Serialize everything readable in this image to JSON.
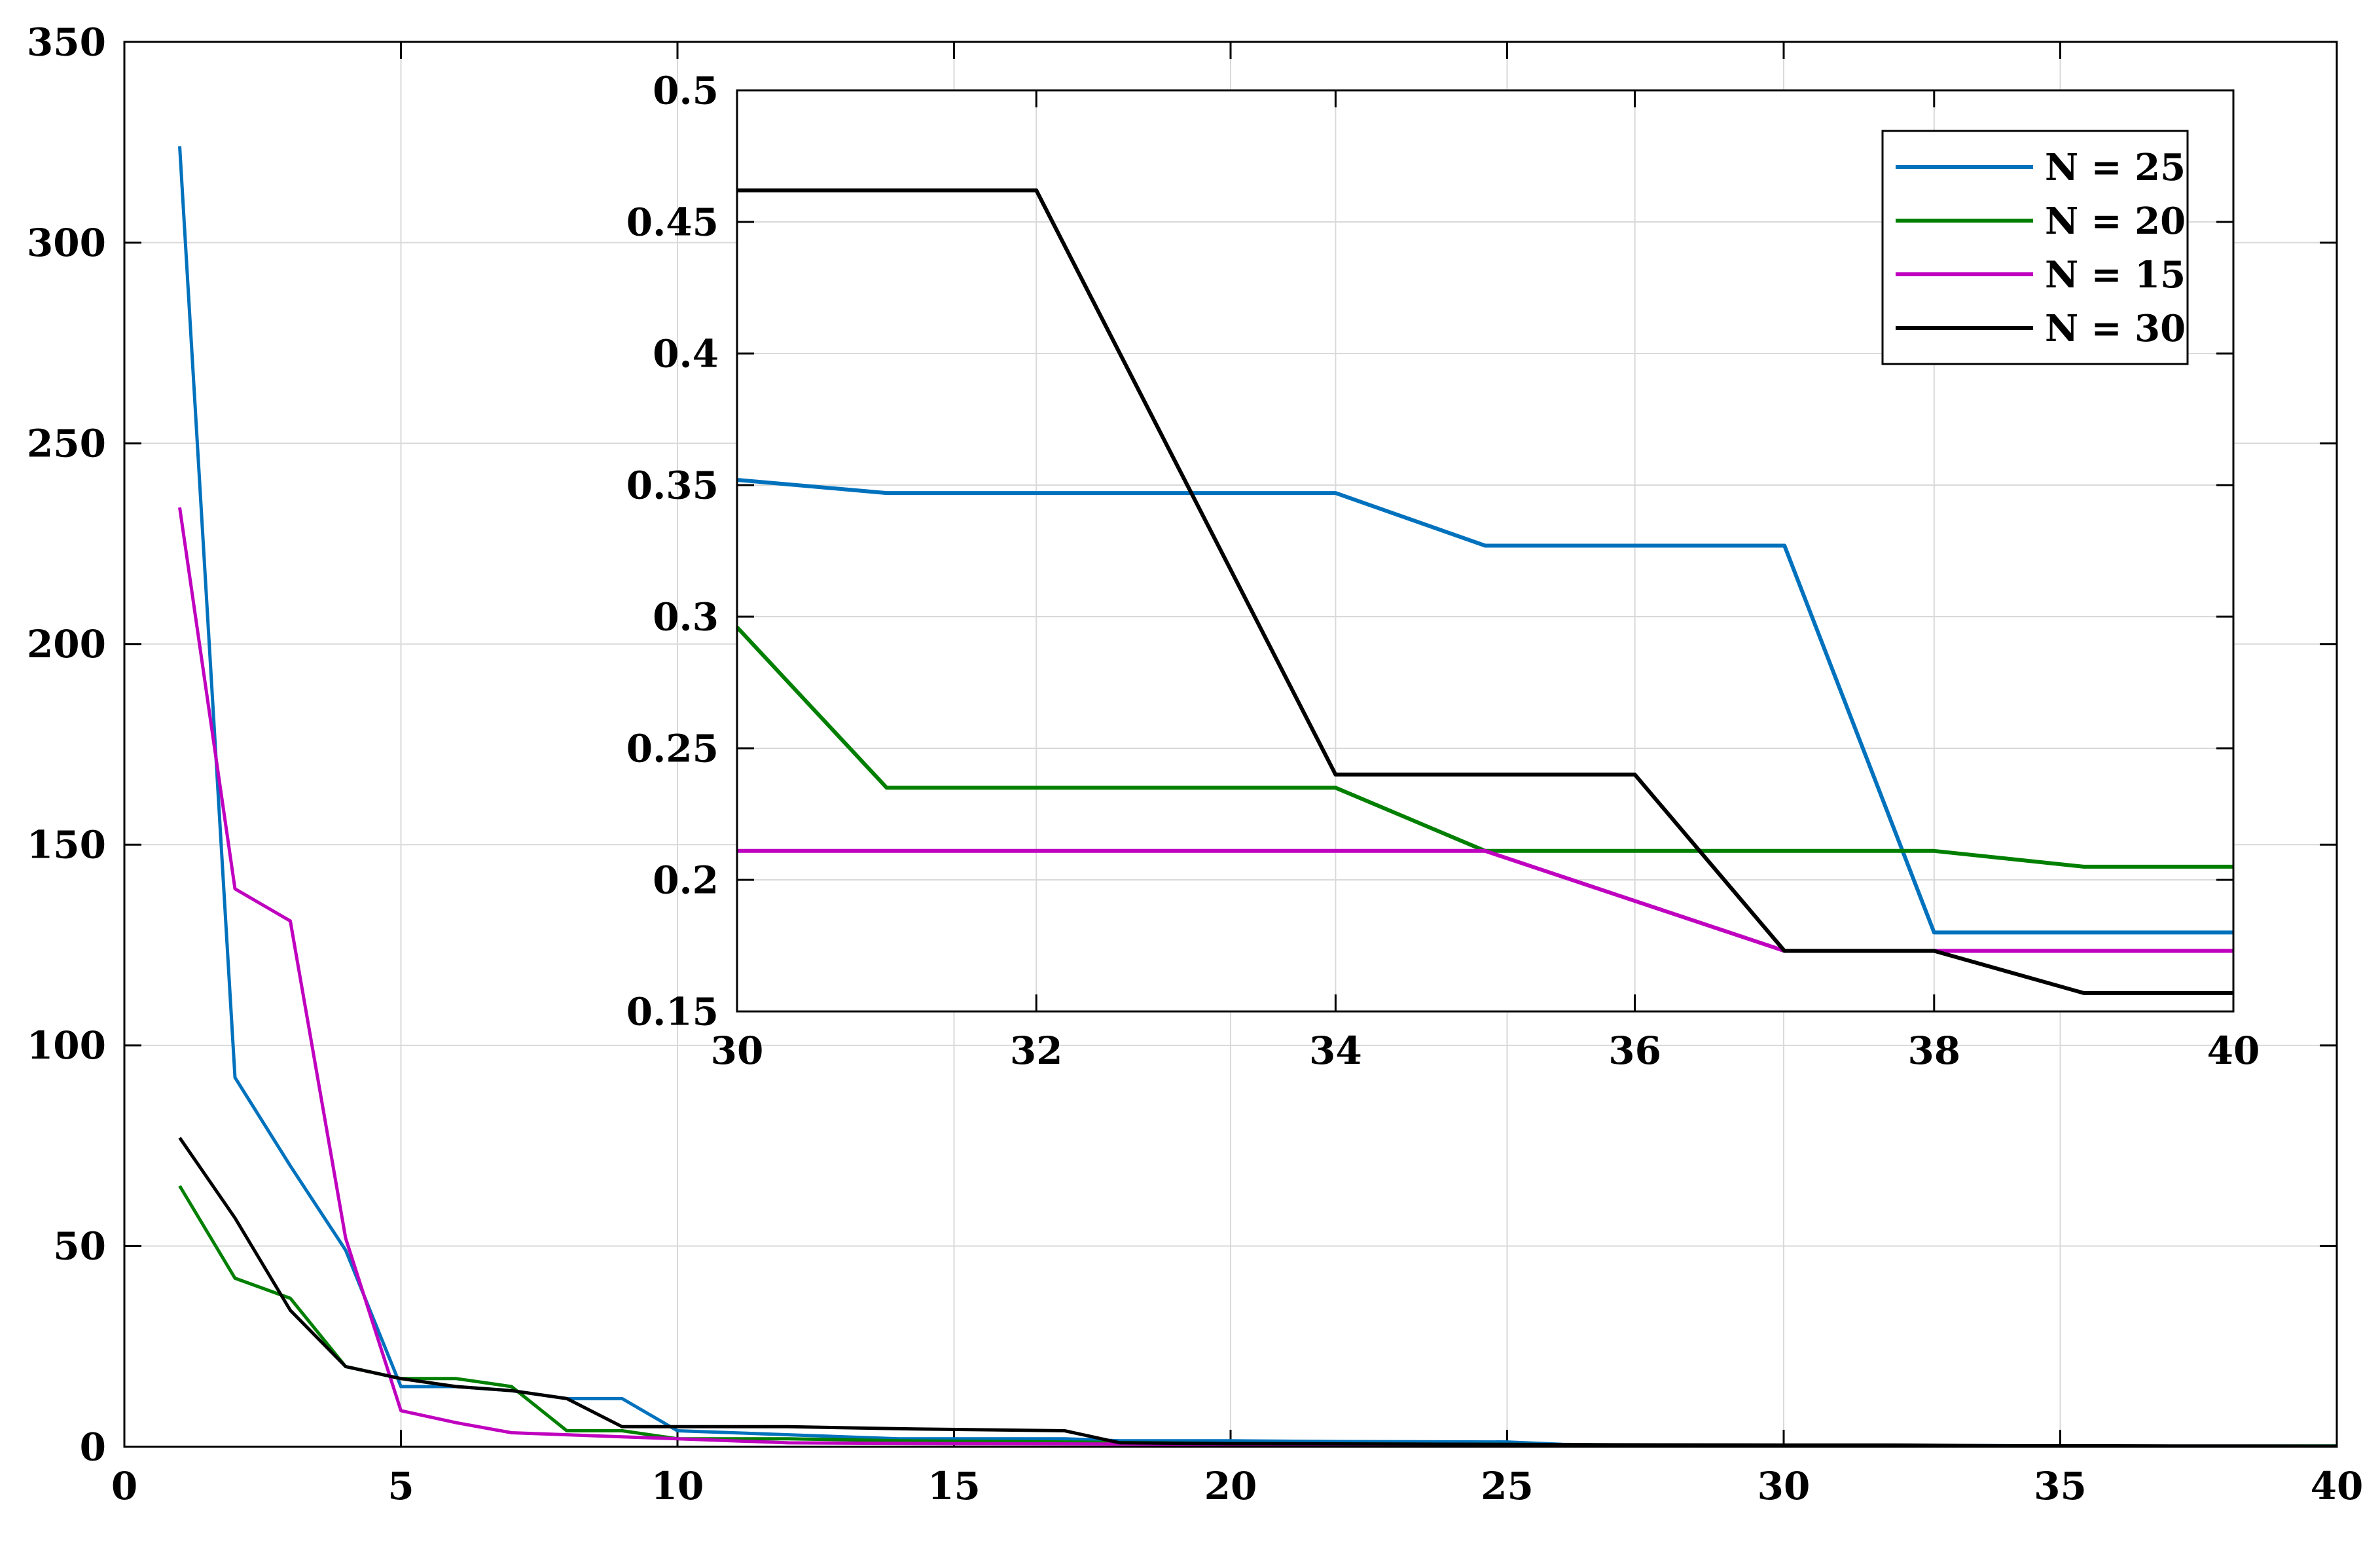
{
  "chart_data": [
    {
      "type": "line",
      "title": "",
      "xlabel": "",
      "ylabel": "",
      "xlim": [
        0,
        40
      ],
      "ylim": [
        0,
        350
      ],
      "xticks": [
        "0",
        "5",
        "10",
        "15",
        "20",
        "25",
        "30",
        "35",
        "40"
      ],
      "yticks": [
        "0",
        "50",
        "100",
        "150",
        "200",
        "250",
        "300",
        "350"
      ],
      "grid": true,
      "series": [
        {
          "name": "N = 25",
          "color": "#0072BD",
          "x": [
            1,
            2,
            3,
            4,
            5,
            6,
            7,
            8,
            9,
            10,
            12,
            14,
            17,
            18,
            20,
            22,
            25,
            26,
            27,
            30,
            33,
            36,
            40
          ],
          "y": [
            324,
            92,
            70,
            49,
            15,
            15,
            14,
            12,
            12,
            4,
            3,
            2,
            2,
            1.5,
            1.5,
            1.3,
            1.2,
            0.6,
            0.4,
            0.35,
            0.33,
            0.18,
            0.18
          ]
        },
        {
          "name": "N = 20",
          "color": "#007F00",
          "x": [
            1,
            2,
            3,
            4,
            5,
            6,
            7,
            8,
            9,
            10,
            12,
            14,
            17,
            20,
            25,
            30,
            35,
            40
          ],
          "y": [
            65,
            42,
            37,
            20,
            17,
            17,
            15,
            4,
            4,
            2,
            2,
            1.5,
            1.2,
            0.8,
            0.6,
            0.3,
            0.21,
            0.2
          ]
        },
        {
          "name": "N = 15",
          "color": "#BF00BF",
          "x": [
            1,
            2,
            3,
            4,
            5,
            6,
            7,
            8,
            9,
            10,
            12,
            15,
            20,
            25,
            30,
            35,
            40
          ],
          "y": [
            234,
            139,
            131,
            52,
            9,
            6,
            3.5,
            3,
            2.5,
            2,
            1,
            0.8,
            0.6,
            0.4,
            0.21,
            0.19,
            0.17
          ]
        },
        {
          "name": "N = 30",
          "color": "#000000",
          "x": [
            1,
            2,
            3,
            4,
            5,
            6,
            7,
            8,
            9,
            10,
            12,
            14,
            17,
            18,
            20,
            25,
            27,
            30,
            32,
            34,
            36,
            37,
            38,
            39,
            40
          ],
          "y": [
            77,
            57,
            34,
            20,
            17,
            15,
            14,
            12,
            5,
            5,
            5,
            4.5,
            4,
            1,
            0.8,
            0.6,
            0.5,
            0.46,
            0.46,
            0.24,
            0.24,
            0.17,
            0.17,
            0.16,
            0.16
          ]
        }
      ]
    },
    {
      "type": "line",
      "title": "",
      "xlabel": "",
      "ylabel": "",
      "xlim": [
        30,
        40
      ],
      "ylim": [
        0.15,
        0.5
      ],
      "xticks": [
        "30",
        "32",
        "34",
        "36",
        "38",
        "40"
      ],
      "yticks": [
        "0.15",
        "0.2",
        "0.25",
        "0.3",
        "0.35",
        "0.4",
        "0.45",
        "0.5"
      ],
      "grid": true,
      "legend_position": "top-right",
      "series": [
        {
          "name": "N = 25",
          "color": "#0072BD",
          "x": [
            30,
            31,
            32,
            33,
            34,
            35,
            36,
            37,
            38,
            39,
            40
          ],
          "y": [
            0.352,
            0.347,
            0.347,
            0.347,
            0.347,
            0.327,
            0.327,
            0.327,
            0.18,
            0.18,
            0.18
          ]
        },
        {
          "name": "N = 20",
          "color": "#007F00",
          "x": [
            30,
            31,
            32,
            33,
            34,
            35,
            36,
            37,
            38,
            39,
            40
          ],
          "y": [
            0.296,
            0.235,
            0.235,
            0.235,
            0.235,
            0.211,
            0.211,
            0.211,
            0.211,
            0.205,
            0.205
          ]
        },
        {
          "name": "N = 15",
          "color": "#BF00BF",
          "x": [
            30,
            31,
            32,
            33,
            34,
            35,
            36,
            37,
            38,
            39,
            40
          ],
          "y": [
            0.211,
            0.211,
            0.211,
            0.211,
            0.211,
            0.211,
            0.192,
            0.173,
            0.173,
            0.173,
            0.173
          ]
        },
        {
          "name": "N = 30",
          "color": "#000000",
          "x": [
            30,
            31,
            32,
            33,
            34,
            35,
            36,
            37,
            38,
            39,
            40
          ],
          "y": [
            0.462,
            0.462,
            0.462,
            0.351,
            0.24,
            0.24,
            0.24,
            0.173,
            0.173,
            0.157,
            0.157
          ]
        }
      ]
    }
  ]
}
